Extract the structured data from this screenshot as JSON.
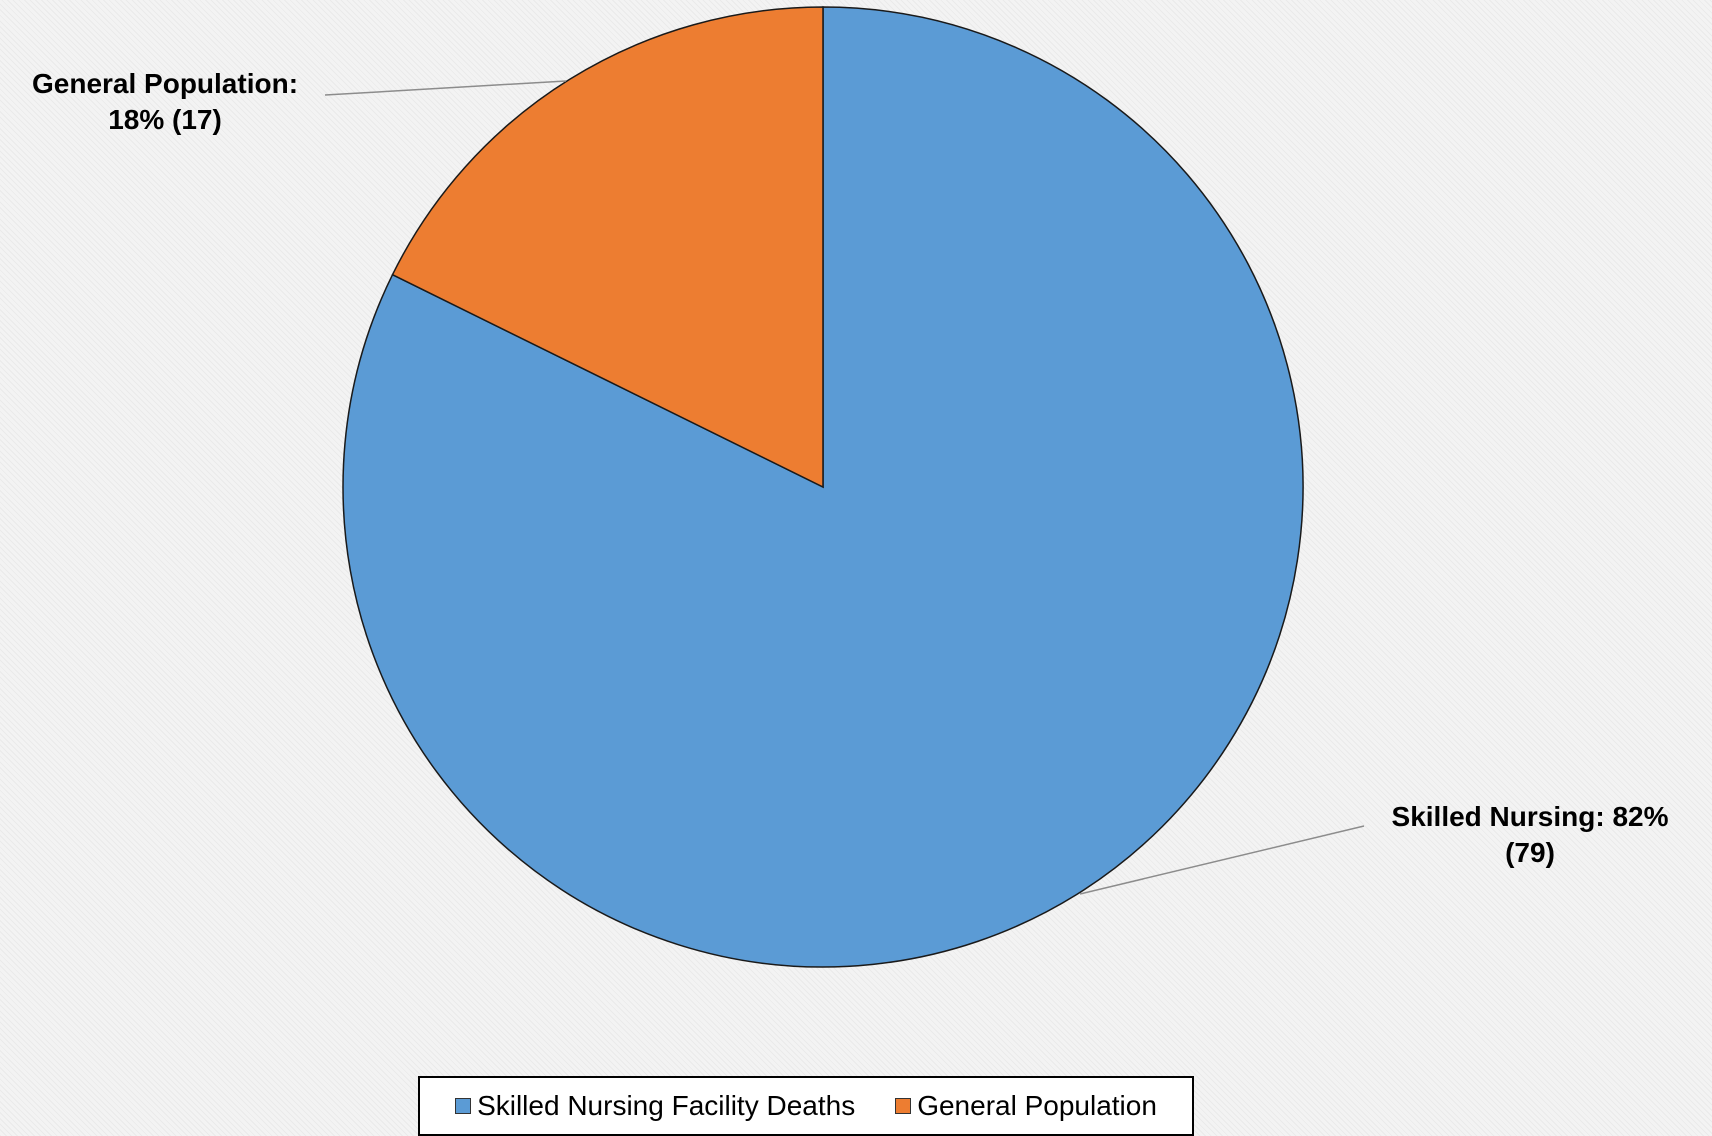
{
  "chart_data": {
    "type": "pie",
    "categories": [
      "Skilled Nursing Facility Deaths",
      "General Population"
    ],
    "values": [
      79,
      17
    ],
    "percentages": [
      82,
      18
    ],
    "colors": [
      "#5b9bd5",
      "#ed7d31"
    ],
    "data_labels": [
      "Skilled Nursing: 82% (79)",
      "General Population: 18% (17)"
    ],
    "legend_position": "bottom"
  },
  "labels": {
    "general_line1": "General Population:",
    "general_line2": "18% (17)",
    "skilled_line1": "Skilled Nursing: 82%",
    "skilled_line2": "(79)"
  },
  "legend": {
    "items": [
      {
        "label": "Skilled Nursing Facility Deaths",
        "color": "#5b9bd5"
      },
      {
        "label": "General Population",
        "color": "#ed7d31"
      }
    ]
  }
}
